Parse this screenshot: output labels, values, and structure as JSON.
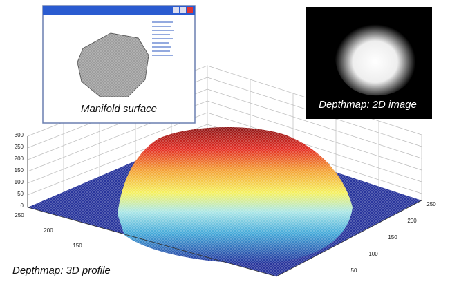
{
  "figure": {
    "manifold_inset": {
      "caption": "Manifold surface"
    },
    "depthmap_inset": {
      "caption": "Depthmap: 2D image"
    },
    "profile_plot": {
      "caption": "Depthmap: 3D profile",
      "z_ticks": [
        0,
        50,
        100,
        150,
        200,
        250,
        300
      ],
      "left_ticks": [
        250,
        200,
        150
      ],
      "right_ticks": [
        50,
        100,
        150,
        200,
        250
      ]
    }
  }
}
